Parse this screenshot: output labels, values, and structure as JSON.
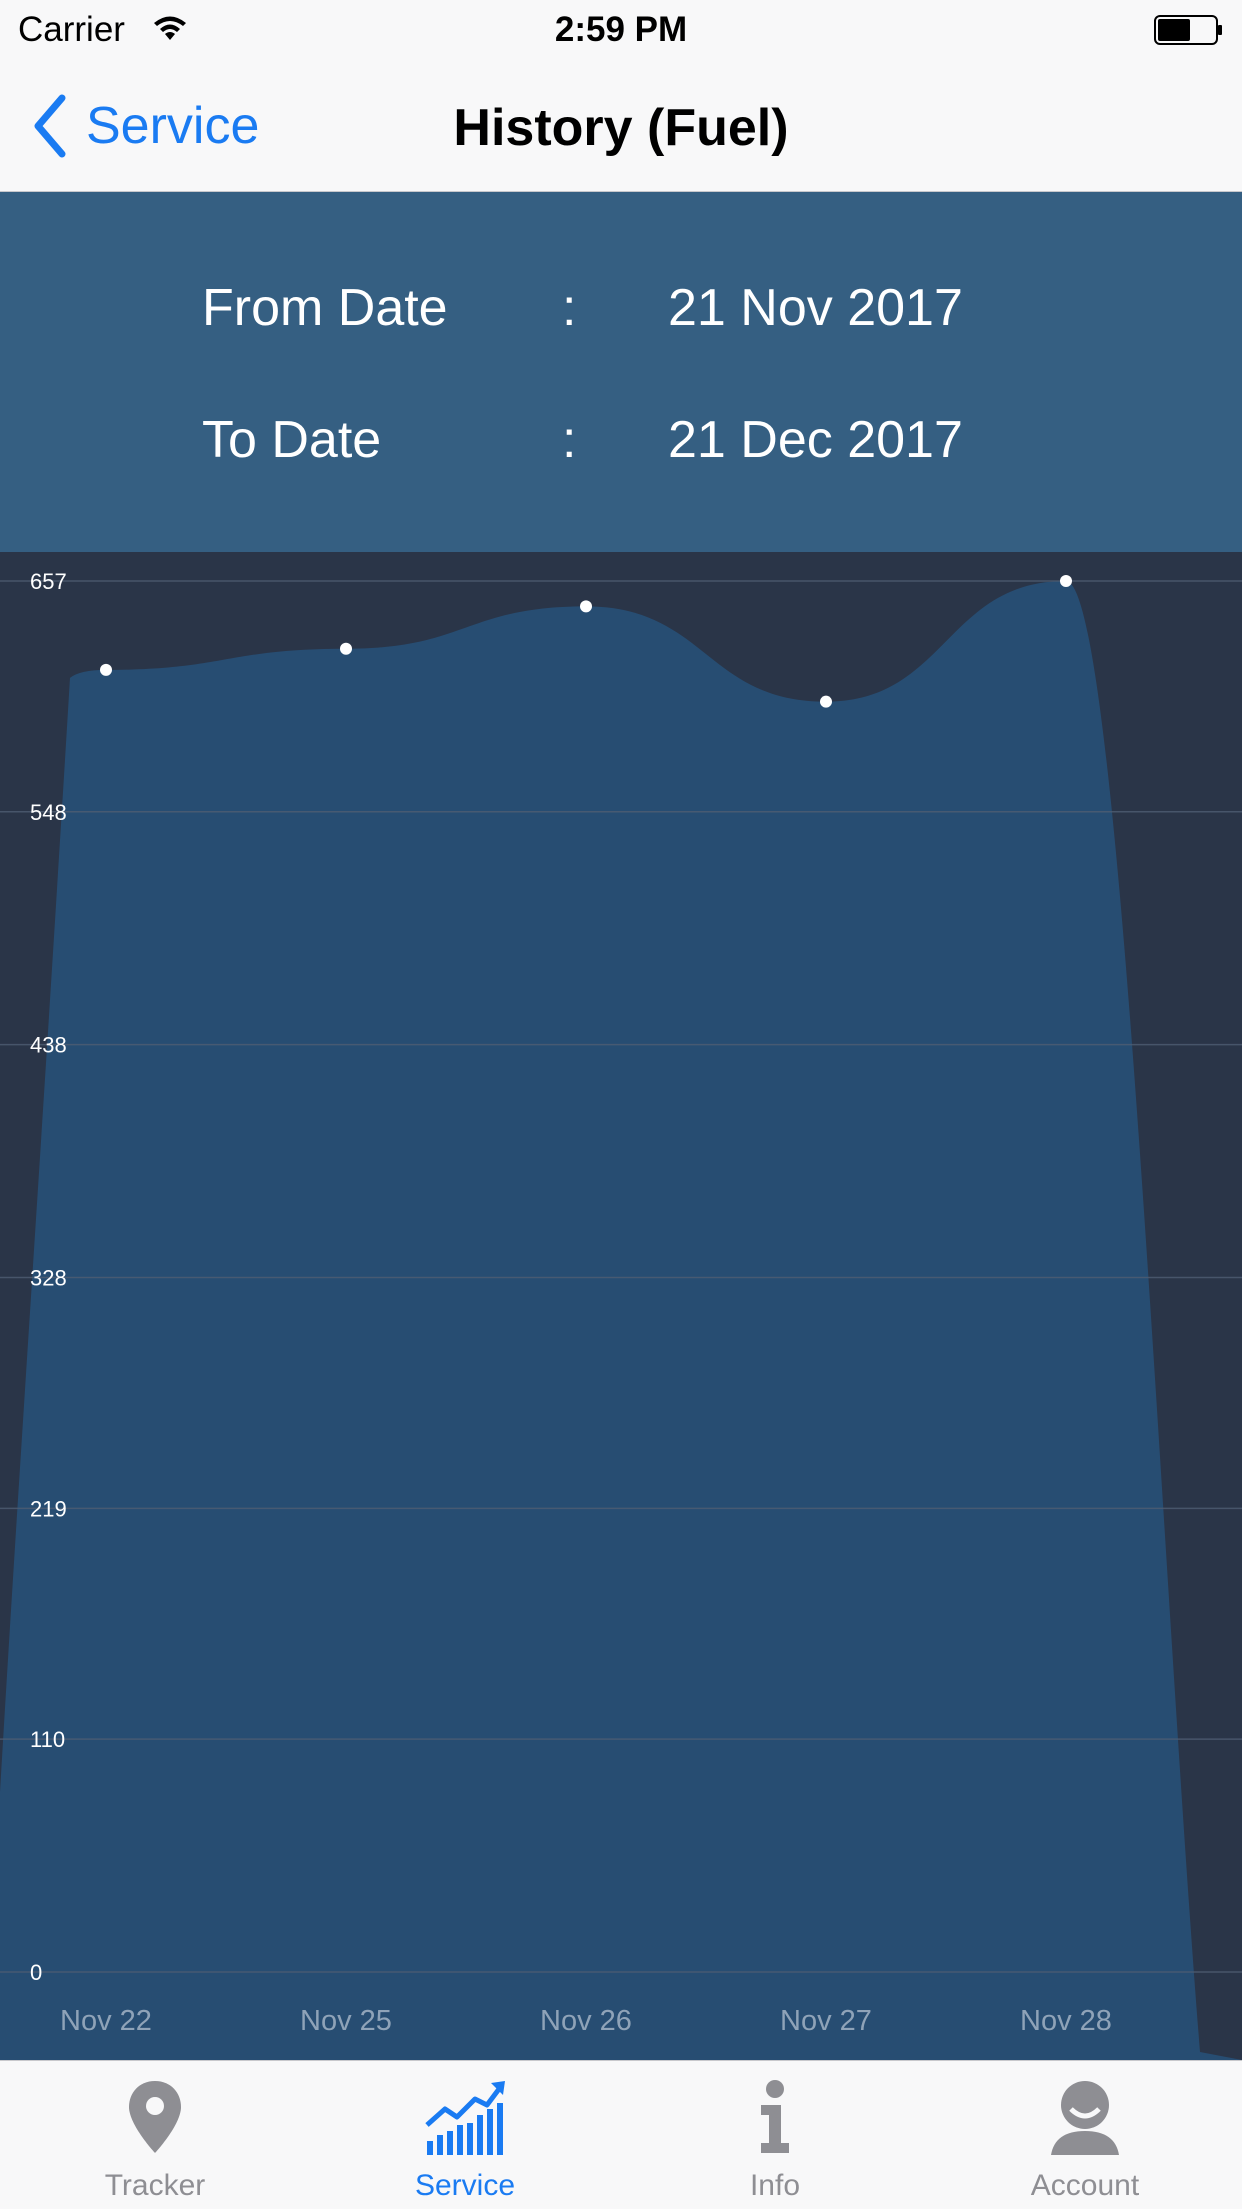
{
  "status_bar": {
    "carrier": "Carrier",
    "time": "2:59 PM"
  },
  "nav": {
    "back_label": "Service",
    "title": "History (Fuel)"
  },
  "dates": {
    "from_label": "From Date",
    "from_value": "21 Nov 2017",
    "to_label": "To Date",
    "to_value": "21 Dec 2017",
    "separator": ":"
  },
  "chart_data": {
    "type": "area",
    "title": "",
    "xlabel": "",
    "ylabel": "",
    "categories": [
      "Nov 22",
      "Nov 25",
      "Nov 26",
      "Nov 27",
      "Nov 28"
    ],
    "values": [
      615,
      625,
      645,
      600,
      657
    ],
    "y_ticks": [
      "0",
      "110",
      "219",
      "328",
      "438",
      "548",
      "657"
    ],
    "ylim": [
      0,
      657
    ],
    "grid": true,
    "colors": {
      "background": "#2a3548",
      "fill": "#274d72",
      "gridline": "#4f5e73",
      "point": "#ffffff"
    }
  },
  "tabs": [
    {
      "label": "Tracker",
      "icon": "location-pin-icon",
      "active": false
    },
    {
      "label": "Service",
      "icon": "trending-chart-icon",
      "active": true
    },
    {
      "label": "Info",
      "icon": "info-icon",
      "active": false
    },
    {
      "label": "Account",
      "icon": "account-icon",
      "active": false
    }
  ],
  "colors": {
    "accent": "#1a7bf2",
    "header_panel": "#355f82",
    "inactive_tab": "#8e8e93"
  }
}
